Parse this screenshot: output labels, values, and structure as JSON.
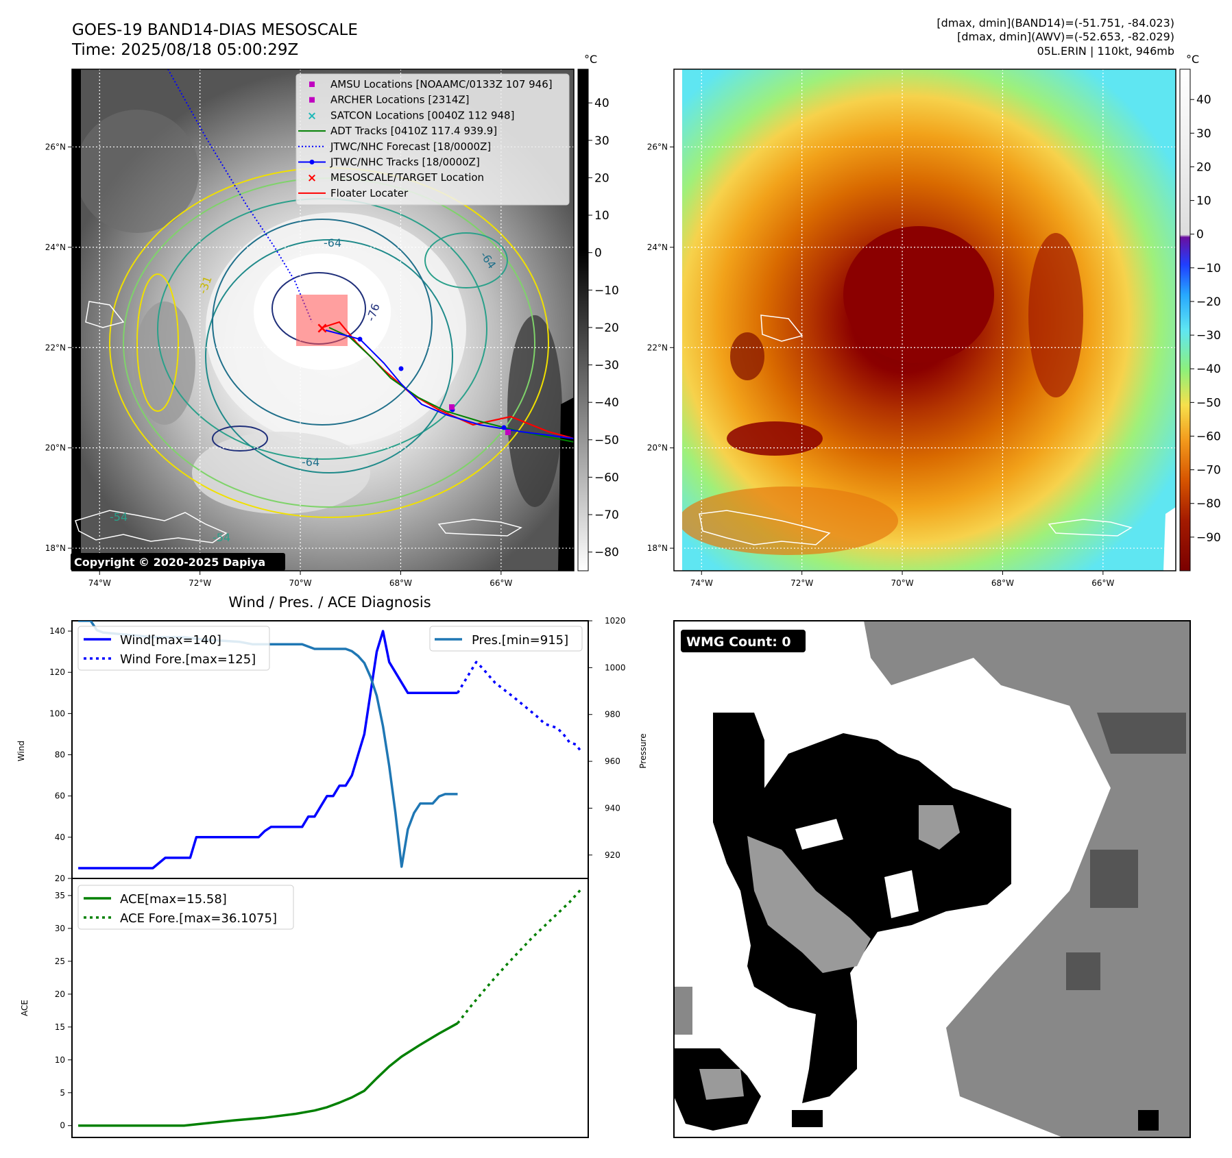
{
  "header": {
    "title_line1": "GOES-19 BAND14-DIAS MESOSCALE",
    "title_line2": "Time: 2025/08/18 05:00:29Z",
    "stats_line1": "[dmax, dmin](BAND14)=(-51.751, -84.023)",
    "stats_line2": "[dmax, dmin](AWV)=(-52.653, -82.029)",
    "stats_line3": "05L.ERIN | 110kt, 946mb"
  },
  "maps": {
    "lat_labels": [
      "26°N",
      "24°N",
      "22°N",
      "20°N",
      "18°N"
    ],
    "lon_labels": [
      "74°W",
      "72°W",
      "70°W",
      "68°W",
      "66°W"
    ],
    "lat_values": [
      26,
      24,
      22,
      20,
      18
    ],
    "lon_values": [
      -74,
      -72,
      -70,
      -68,
      -66
    ],
    "extent": {
      "lon_min": -74.55,
      "lon_max": -64.55,
      "lat_min": 17.55,
      "lat_max": 27.55
    },
    "copyright": "Copyright © 2020-2025 Dapiya",
    "contour_labels": [
      "-64",
      "-64",
      "-76",
      "-64",
      "-54",
      "-54",
      "-31"
    ],
    "legend": [
      {
        "label": "AMSU Locations [NOAAMC/0133Z 107 946]",
        "symbol": "square",
        "color": "#c000c0"
      },
      {
        "label": "ARCHER Locations [2314Z]",
        "symbol": "square",
        "color": "#c000c0"
      },
      {
        "label": "SATCON Locations [0040Z 112 948]",
        "symbol": "x",
        "color": "#1fb8b8"
      },
      {
        "label": "ADT Tracks [0410Z 117.4 939.9]",
        "symbol": "line",
        "color": "#008000"
      },
      {
        "label": "JTWC/NHC Forecast [18/0000Z]",
        "symbol": "dotted",
        "color": "#0000ff"
      },
      {
        "label": "JTWC/NHC Tracks [18/0000Z]",
        "symbol": "line-dot",
        "color": "#0000ff"
      },
      {
        "label": "MESOSCALE/TARGET Location",
        "symbol": "x",
        "color": "#ff0000"
      },
      {
        "label": "Floater Locater",
        "symbol": "line",
        "color": "#ff0000"
      }
    ]
  },
  "colorbar_gray": {
    "unit": "°C",
    "ticks": [
      "40",
      "30",
      "20",
      "10",
      "0",
      "−10",
      "−20",
      "−30",
      "−40",
      "−50",
      "−60",
      "−70",
      "−80"
    ],
    "tick_values": [
      40,
      30,
      20,
      10,
      0,
      -10,
      -20,
      -30,
      -40,
      -50,
      -60,
      -70,
      -80
    ],
    "range": [
      -85,
      49
    ]
  },
  "colorbar_color": {
    "unit": "°C",
    "ticks": [
      "40",
      "30",
      "20",
      "10",
      "0",
      "−10",
      "−20",
      "−30",
      "−40",
      "−50",
      "−60",
      "−70",
      "−80",
      "−90"
    ],
    "tick_values": [
      40,
      30,
      20,
      10,
      0,
      -10,
      -20,
      -30,
      -40,
      -50,
      -60,
      -70,
      -80,
      -90
    ],
    "range": [
      -100,
      49
    ]
  },
  "wmg": {
    "label": "WMG Count: 0"
  },
  "chart_data": [
    {
      "type": "line",
      "title": "Wind / Pres. / ACE Diagnosis",
      "ylabel": "Wind",
      "ylabel_right": "Pressure",
      "ylim": [
        20,
        145
      ],
      "ylim_right": [
        910,
        1020
      ],
      "xlim": [
        -1,
        82
      ],
      "yticks": [
        20,
        40,
        60,
        80,
        100,
        120,
        140
      ],
      "yticks_right": [
        920,
        940,
        960,
        980,
        1000,
        1020
      ],
      "legend_left": [
        "Wind[max=140]",
        "Wind Fore.[max=125]"
      ],
      "legend_right": [
        "Pres.[min=915]"
      ],
      "series": [
        {
          "name": "Wind[max=140]",
          "axis": "left",
          "style": "solid",
          "color": "#0000ff",
          "x": [
            0,
            12,
            14,
            18,
            19,
            29,
            30,
            31,
            36,
            37,
            38,
            39,
            40,
            41,
            42,
            43,
            44,
            45,
            46,
            48,
            49,
            50,
            53,
            54,
            55,
            56,
            57,
            58,
            59,
            60,
            61
          ],
          "values": [
            25,
            25,
            30,
            30,
            40,
            40,
            43,
            45,
            45,
            50,
            50,
            55,
            60,
            60,
            65,
            65,
            70,
            80,
            90,
            130,
            140,
            125,
            110,
            110,
            110,
            110,
            110,
            110,
            110,
            110,
            110
          ]
        },
        {
          "name": "Wind Fore.[max=125]",
          "axis": "left",
          "style": "dotted",
          "color": "#0000ff",
          "x": [
            61,
            63,
            64,
            65,
            67,
            70,
            72,
            74,
            75,
            77,
            78,
            79,
            80,
            81
          ],
          "values": [
            110,
            120,
            125,
            122,
            115,
            108,
            103,
            98,
            95,
            93,
            90,
            86,
            85,
            81
          ]
        },
        {
          "name": "Pres.[min=915]",
          "axis": "right",
          "style": "solid",
          "color": "#1f77b4",
          "x": [
            0,
            1,
            2,
            3,
            4,
            8,
            12,
            15,
            17,
            20,
            26,
            28,
            30,
            36,
            37,
            38,
            39,
            40,
            41,
            42,
            43,
            44,
            45,
            46,
            47,
            48,
            49,
            50,
            51,
            52,
            53,
            54,
            55,
            56,
            57,
            58,
            59,
            60,
            61
          ],
          "values": [
            1020,
            1020,
            1020,
            1016,
            1015,
            1014,
            1013,
            1013,
            1013,
            1012,
            1011,
            1010,
            1010,
            1010,
            1009,
            1008,
            1008,
            1008,
            1008,
            1008,
            1008,
            1007,
            1005,
            1002,
            996,
            988,
            975,
            958,
            938,
            915,
            931,
            938,
            942,
            942,
            942,
            945,
            946,
            946,
            946
          ]
        }
      ]
    },
    {
      "type": "line",
      "ylabel": "ACE",
      "ylim": [
        -1.8,
        37.6
      ],
      "xlim": [
        -1,
        82
      ],
      "yticks": [
        0,
        5,
        10,
        15,
        20,
        25,
        30,
        35
      ],
      "legend": [
        "ACE[max=15.58]",
        "ACE Fore.[max=36.1075]"
      ],
      "series": [
        {
          "name": "ACE[max=15.58]",
          "style": "solid",
          "color": "#008000",
          "x": [
            0,
            17,
            20,
            25,
            30,
            35,
            38,
            40,
            42,
            43,
            44,
            45,
            46,
            48,
            50,
            52,
            55,
            58,
            61
          ],
          "values": [
            0,
            0,
            0.3,
            0.8,
            1.2,
            1.8,
            2.3,
            2.8,
            3.5,
            3.9,
            4.3,
            4.8,
            5.3,
            7.2,
            9.0,
            10.5,
            12.3,
            14.0,
            15.58
          ]
        },
        {
          "name": "ACE Fore.[max=36.1075]",
          "style": "dotted",
          "color": "#008000",
          "x": [
            61,
            63,
            65,
            67,
            69,
            71,
            73,
            75,
            77,
            79,
            81
          ],
          "values": [
            15.58,
            18.0,
            20.3,
            22.5,
            24.6,
            26.6,
            28.6,
            30.4,
            32.2,
            34.0,
            36.11
          ]
        }
      ]
    }
  ]
}
